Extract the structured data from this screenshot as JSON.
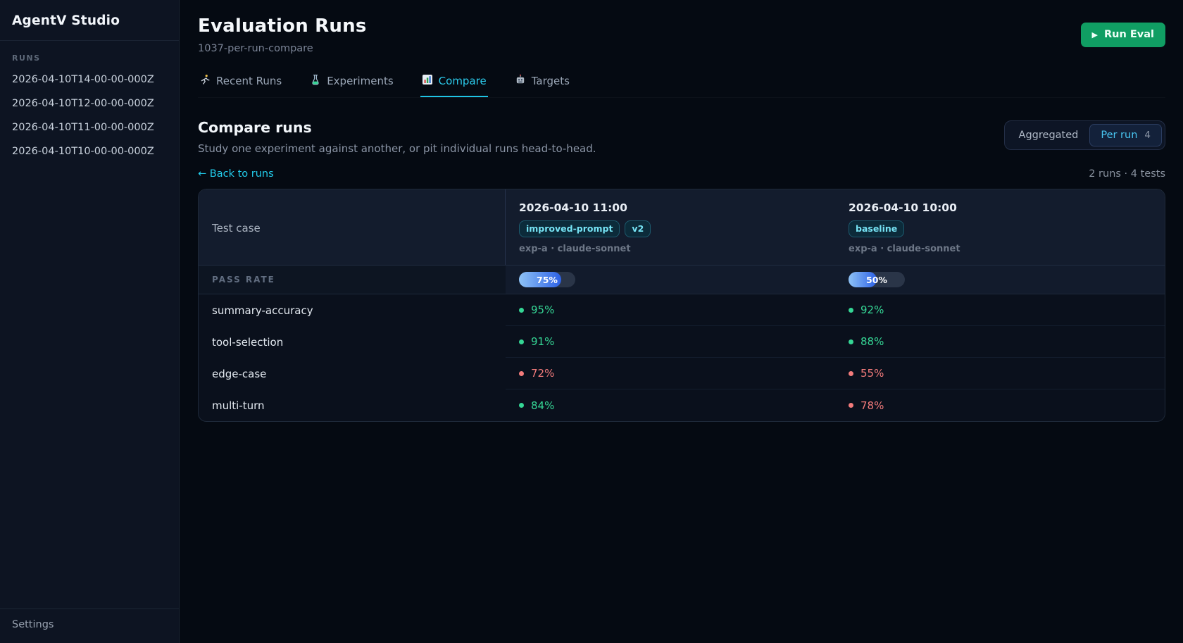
{
  "sidebar": {
    "title": "AgentV Studio",
    "section_label": "RUNS",
    "runs": [
      "2026-04-10T14-00-00-000Z",
      "2026-04-10T12-00-00-000Z",
      "2026-04-10T11-00-00-000Z",
      "2026-04-10T10-00-00-000Z"
    ],
    "settings_label": "Settings"
  },
  "header": {
    "title": "Evaluation Runs",
    "subtitle": "1037-per-run-compare",
    "run_eval_icon": "▶",
    "run_eval_label": "Run Eval"
  },
  "tabs": [
    {
      "icon": "runner-icon",
      "label": "Recent Runs",
      "active": false
    },
    {
      "icon": "test-tube-icon",
      "label": "Experiments",
      "active": false
    },
    {
      "icon": "bar-chart-icon",
      "label": "Compare",
      "active": true
    },
    {
      "icon": "robot-icon",
      "label": "Targets",
      "active": false
    }
  ],
  "compare": {
    "heading": "Compare runs",
    "description": "Study one experiment against another, or pit individual runs head-to-head.",
    "toggle": {
      "aggregated_label": "Aggregated",
      "per_run_label": "Per run",
      "per_run_count": "4",
      "selected": "per_run"
    },
    "back_link": "← Back to runs",
    "summary": "2 runs · 4 tests"
  },
  "table": {
    "first_column_header": "Test case",
    "pass_rate_label": "PASS RATE",
    "runs": [
      {
        "datetime": "2026-04-10 11:00",
        "badges": [
          "improved-prompt",
          "v2"
        ],
        "meta": "exp-a · claude-sonnet",
        "pass_rate_percent": 75
      },
      {
        "datetime": "2026-04-10 10:00",
        "badges": [
          "baseline"
        ],
        "meta": "exp-a · claude-sonnet",
        "pass_rate_percent": 50
      }
    ],
    "rows": [
      {
        "test": "summary-accuracy",
        "values": [
          {
            "text": "95%",
            "status": "pass"
          },
          {
            "text": "92%",
            "status": "pass"
          }
        ]
      },
      {
        "test": "tool-selection",
        "values": [
          {
            "text": "91%",
            "status": "pass"
          },
          {
            "text": "88%",
            "status": "pass"
          }
        ]
      },
      {
        "test": "edge-case",
        "values": [
          {
            "text": "72%",
            "status": "fail"
          },
          {
            "text": "55%",
            "status": "fail"
          }
        ]
      },
      {
        "test": "multi-turn",
        "values": [
          {
            "text": "84%",
            "status": "pass"
          },
          {
            "text": "78%",
            "status": "fail"
          }
        ]
      }
    ]
  },
  "colors": {
    "pass": "#35d695",
    "fail": "#f37b7b",
    "accent_cyan": "#22cdec",
    "run_eval_green": "#109e63",
    "bar_fill_start": "#8fc3f6",
    "bar_fill_end": "#2d61e6"
  }
}
